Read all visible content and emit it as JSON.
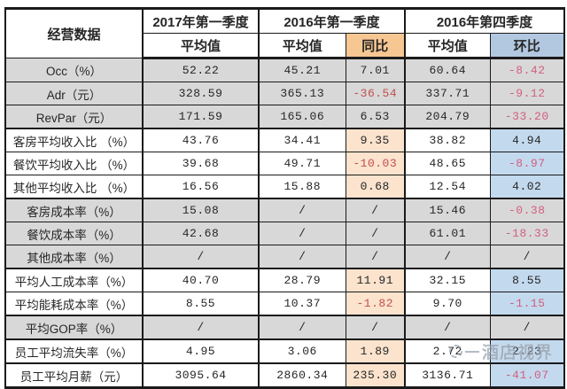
{
  "chart_data": {
    "type": "table",
    "corner_label": "经营数据",
    "col_groups": [
      {
        "label": "2017年第一季度",
        "span": 1
      },
      {
        "label": "2016年第一季度",
        "span": 2
      },
      {
        "label": "2016年第四季度",
        "span": 2
      }
    ],
    "sub_headers": [
      "平均值",
      "平均值",
      "同比",
      "平均值",
      "环比"
    ],
    "rows": [
      {
        "label": "Occ（%）",
        "shaded": true,
        "thick_top": false,
        "values": [
          "52.22",
          "45.21",
          "7.01",
          "60.64",
          "-8.42"
        ]
      },
      {
        "label": "Adr（元）",
        "shaded": true,
        "thick_top": false,
        "values": [
          "328.59",
          "365.13",
          "-36.54",
          "337.71",
          "-9.12"
        ]
      },
      {
        "label": "RevPar（元）",
        "shaded": true,
        "thick_top": false,
        "values": [
          "171.59",
          "165.06",
          "6.53",
          "204.79",
          "-33.20"
        ]
      },
      {
        "label": "客房平均收入比 （%）",
        "shaded": false,
        "thick_top": true,
        "values": [
          "43.76",
          "34.41",
          "9.35",
          "38.82",
          "4.94"
        ]
      },
      {
        "label": "餐饮平均收入比 （%）",
        "shaded": false,
        "thick_top": false,
        "values": [
          "39.68",
          "49.71",
          "-10.03",
          "48.65",
          "-8.97"
        ]
      },
      {
        "label": "其他平均收入比 （%）",
        "shaded": false,
        "thick_top": false,
        "values": [
          "16.56",
          "15.88",
          "0.68",
          "12.54",
          "4.02"
        ]
      },
      {
        "label": "客房成本率（%）",
        "shaded": true,
        "thick_top": true,
        "values": [
          "15.08",
          "/",
          "/",
          "15.46",
          "-0.38"
        ]
      },
      {
        "label": "餐饮成本率（%）",
        "shaded": true,
        "thick_top": false,
        "values": [
          "42.68",
          "/",
          "/",
          "61.01",
          "-18.33"
        ]
      },
      {
        "label": "其他成本率（%）",
        "shaded": true,
        "thick_top": false,
        "values": [
          "/",
          "/",
          "/",
          "/",
          "/"
        ]
      },
      {
        "label": "平均人工成本率（%）",
        "shaded": false,
        "thick_top": true,
        "values": [
          "40.70",
          "28.79",
          "11.91",
          "32.15",
          "8.55"
        ]
      },
      {
        "label": "平均能耗成本率（%）",
        "shaded": false,
        "thick_top": false,
        "values": [
          "8.55",
          "10.37",
          "-1.82",
          "9.70",
          "-1.15"
        ]
      },
      {
        "label": "平均GOP率（%）",
        "shaded": true,
        "thick_top": true,
        "values": [
          "/",
          "/",
          "/",
          "/",
          "/"
        ]
      },
      {
        "label": "员工平均流失率（%）",
        "shaded": false,
        "thick_top": true,
        "values": [
          "4.95",
          "3.06",
          "1.89",
          "2.72",
          "2.23"
        ]
      },
      {
        "label": "员工平均月薪（元）",
        "shaded": false,
        "thick_top": true,
        "values": [
          "3095.64",
          "2860.34",
          "235.30",
          "3136.71",
          "-41.07"
        ]
      }
    ]
  },
  "watermark": {
    "text": "酒店视界",
    "icon": "sun-icon"
  },
  "colors": {
    "row_shade_gray": "#d8d8d8",
    "yoy_header_bg": "#f6c693",
    "yoy_cell_bg": "#fbe3cd",
    "qoq_header_bg": "#b2c8e0",
    "qoq_cell_bg": "#c3d9ee",
    "negative_value_red": "#c0504d",
    "negative_value_pink": "#d16080",
    "border_black": "#1a1a1a",
    "watermark_gray": "#94a0ac"
  }
}
